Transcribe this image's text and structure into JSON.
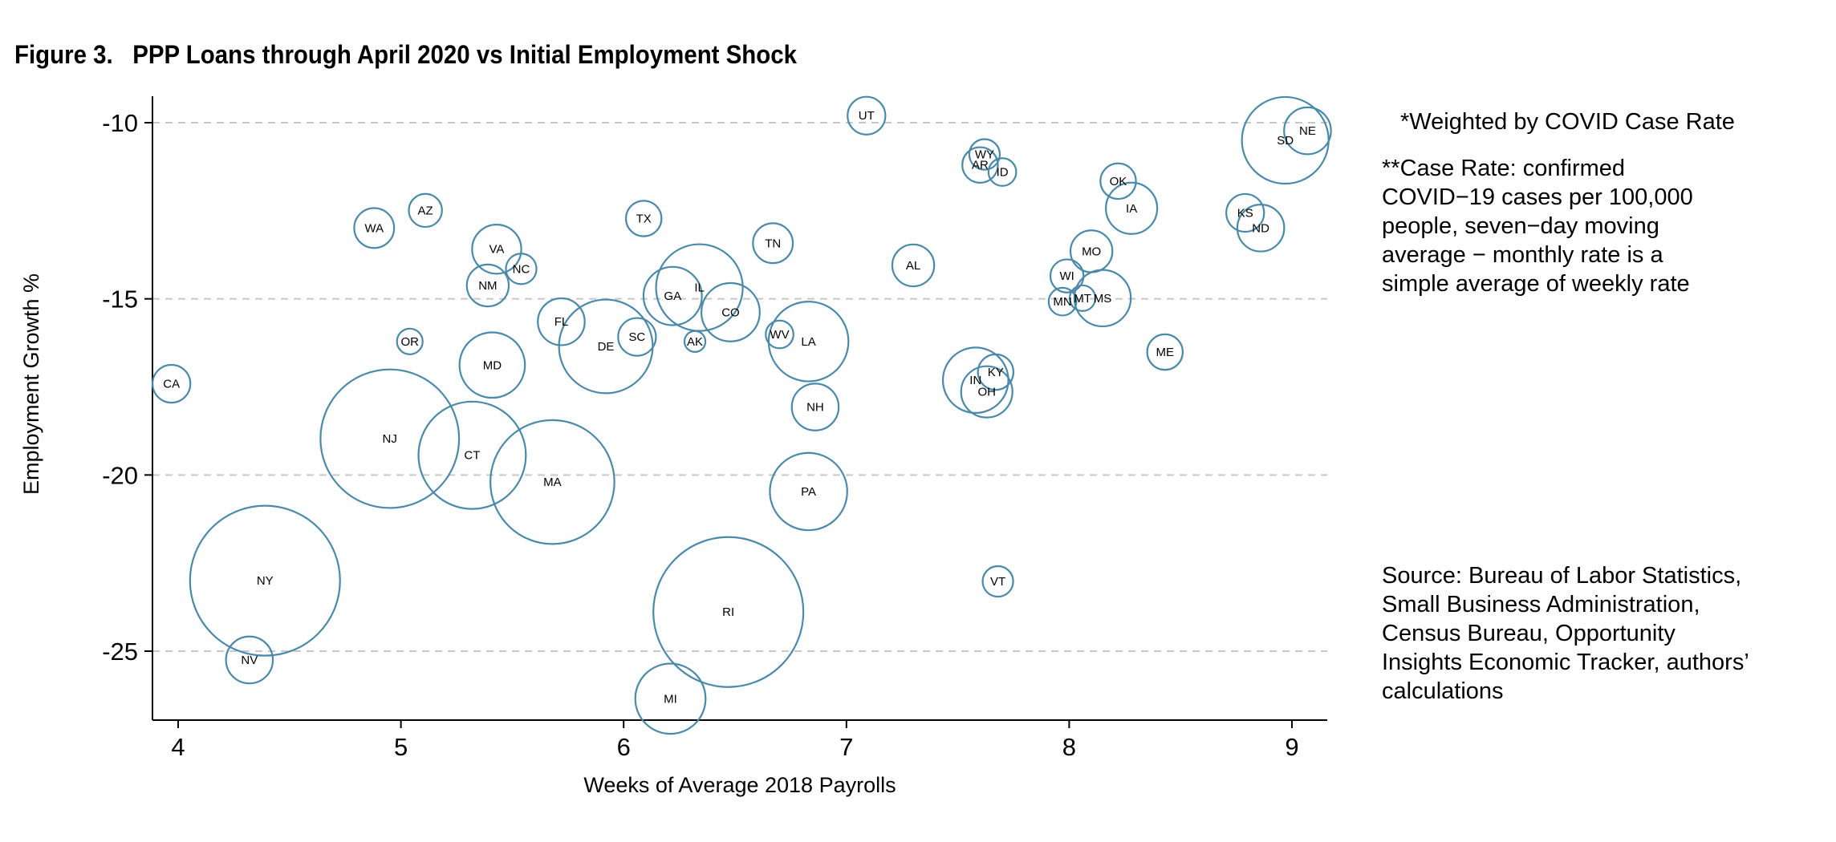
{
  "chart_data": {
    "type": "scatter",
    "title": "Figure 3.   PPP Loans through April 2020 vs Initial Employment Shock",
    "xlabel": "Weeks of Average 2018 Payrolls",
    "ylabel": "Employment Growth %",
    "xlim": [
      3.9,
      9.16
    ],
    "ylim": [
      -27.2,
      -9.2
    ],
    "xticks": [
      4,
      5,
      6,
      7,
      8,
      9
    ],
    "yticks": [
      -10,
      -15,
      -20,
      -25
    ],
    "grid": "horizontal dashed at y ticks",
    "marker_color": "#4a8aa8",
    "bubble_size_note": "Weighted by COVID Case Rate (relative bubble area)",
    "points": [
      {
        "label": "CA",
        "x": 3.97,
        "y": -17.41,
        "size": 2.6
      },
      {
        "label": "NY",
        "x": 4.39,
        "y": -23.0,
        "size": 41
      },
      {
        "label": "NV",
        "x": 4.32,
        "y": -25.25,
        "size": 4.0
      },
      {
        "label": "WA",
        "x": 4.88,
        "y": -12.99,
        "size": 2.9
      },
      {
        "label": "AZ",
        "x": 5.11,
        "y": -12.49,
        "size": 2.0
      },
      {
        "label": "OR",
        "x": 5.04,
        "y": -16.21,
        "size": 1.2
      },
      {
        "label": "NJ",
        "x": 4.95,
        "y": -18.97,
        "size": 35
      },
      {
        "label": "VA",
        "x": 5.43,
        "y": -13.59,
        "size": 4.4
      },
      {
        "label": "NC",
        "x": 5.54,
        "y": -14.15,
        "size": 1.7
      },
      {
        "label": "NM",
        "x": 5.39,
        "y": -14.62,
        "size": 3.2
      },
      {
        "label": "MD",
        "x": 5.41,
        "y": -16.88,
        "size": 7.8
      },
      {
        "label": "CT",
        "x": 5.32,
        "y": -19.44,
        "size": 21
      },
      {
        "label": "MA",
        "x": 5.68,
        "y": -20.2,
        "size": 28
      },
      {
        "label": "FL",
        "x": 5.72,
        "y": -15.65,
        "size": 4.0
      },
      {
        "label": "DE",
        "x": 5.92,
        "y": -16.35,
        "size": 16
      },
      {
        "label": "SC",
        "x": 6.06,
        "y": -16.08,
        "size": 2.6
      },
      {
        "label": "TX",
        "x": 6.09,
        "y": -12.72,
        "size": 2.3
      },
      {
        "label": "GA",
        "x": 6.22,
        "y": -14.92,
        "size": 6.2
      },
      {
        "label": "IL",
        "x": 6.34,
        "y": -14.68,
        "size": 13.7
      },
      {
        "label": "CO",
        "x": 6.48,
        "y": -15.38,
        "size": 6.2
      },
      {
        "label": "AK",
        "x": 6.32,
        "y": -16.21,
        "size": 0.8
      },
      {
        "label": "TN",
        "x": 6.67,
        "y": -13.42,
        "size": 2.9
      },
      {
        "label": "WV",
        "x": 6.7,
        "y": -16.01,
        "size": 1.4
      },
      {
        "label": "LA",
        "x": 6.83,
        "y": -16.21,
        "size": 11.6
      },
      {
        "label": "NH",
        "x": 6.86,
        "y": -18.07,
        "size": 4.0
      },
      {
        "label": "PA",
        "x": 6.83,
        "y": -20.47,
        "size": 10.9
      },
      {
        "label": "RI",
        "x": 6.47,
        "y": -23.89,
        "size": 41
      },
      {
        "label": "MI",
        "x": 6.21,
        "y": -26.35,
        "size": 9.0
      },
      {
        "label": "UT",
        "x": 7.09,
        "y": -9.8,
        "size": 2.6
      },
      {
        "label": "AL",
        "x": 7.3,
        "y": -14.05,
        "size": 3.2
      },
      {
        "label": "WY",
        "x": 7.62,
        "y": -10.9,
        "size": 1.7
      },
      {
        "label": "AR",
        "x": 7.6,
        "y": -11.2,
        "size": 2.3
      },
      {
        "label": "ID",
        "x": 7.7,
        "y": -11.4,
        "size": 1.4
      },
      {
        "label": "IN",
        "x": 7.58,
        "y": -17.31,
        "size": 7.8
      },
      {
        "label": "KY",
        "x": 7.67,
        "y": -17.08,
        "size": 2.3
      },
      {
        "label": "OH",
        "x": 7.63,
        "y": -17.64,
        "size": 4.8
      },
      {
        "label": "VT",
        "x": 7.68,
        "y": -23.02,
        "size": 1.7
      },
      {
        "label": "WI",
        "x": 7.99,
        "y": -14.35,
        "size": 2.0
      },
      {
        "label": "MN",
        "x": 7.97,
        "y": -15.08,
        "size": 1.4
      },
      {
        "label": "MT",
        "x": 8.06,
        "y": -14.98,
        "size": 1.2
      },
      {
        "label": "MS",
        "x": 8.15,
        "y": -14.98,
        "size": 5.8
      },
      {
        "label": "MO",
        "x": 8.1,
        "y": -13.65,
        "size": 3.2
      },
      {
        "label": "OK",
        "x": 8.22,
        "y": -11.66,
        "size": 2.3
      },
      {
        "label": "IA",
        "x": 8.28,
        "y": -12.43,
        "size": 4.8
      },
      {
        "label": "ME",
        "x": 8.43,
        "y": -16.51,
        "size": 2.3
      },
      {
        "label": "KS",
        "x": 8.79,
        "y": -12.56,
        "size": 2.6
      },
      {
        "label": "ND",
        "x": 8.86,
        "y": -12.99,
        "size": 4.0
      },
      {
        "label": "SD",
        "x": 8.97,
        "y": -10.5,
        "size": 13.7
      },
      {
        "label": "NE",
        "x": 9.07,
        "y": -10.23,
        "size": 4.0
      }
    ]
  },
  "notes": {
    "weighted": "*Weighted by COVID Case Rate",
    "case_rate": "**Case Rate: confirmed\n   COVID−19 cases per 100,000\n   people, seven−day moving\n   average − monthly rate is a\n   simple average of weekly rate",
    "source": "Source: Bureau of Labor Statistics,\nSmall Business Administration,\nCensus Bureau, Opportunity\nInsights Economic Tracker, authors’\ncalculations"
  }
}
